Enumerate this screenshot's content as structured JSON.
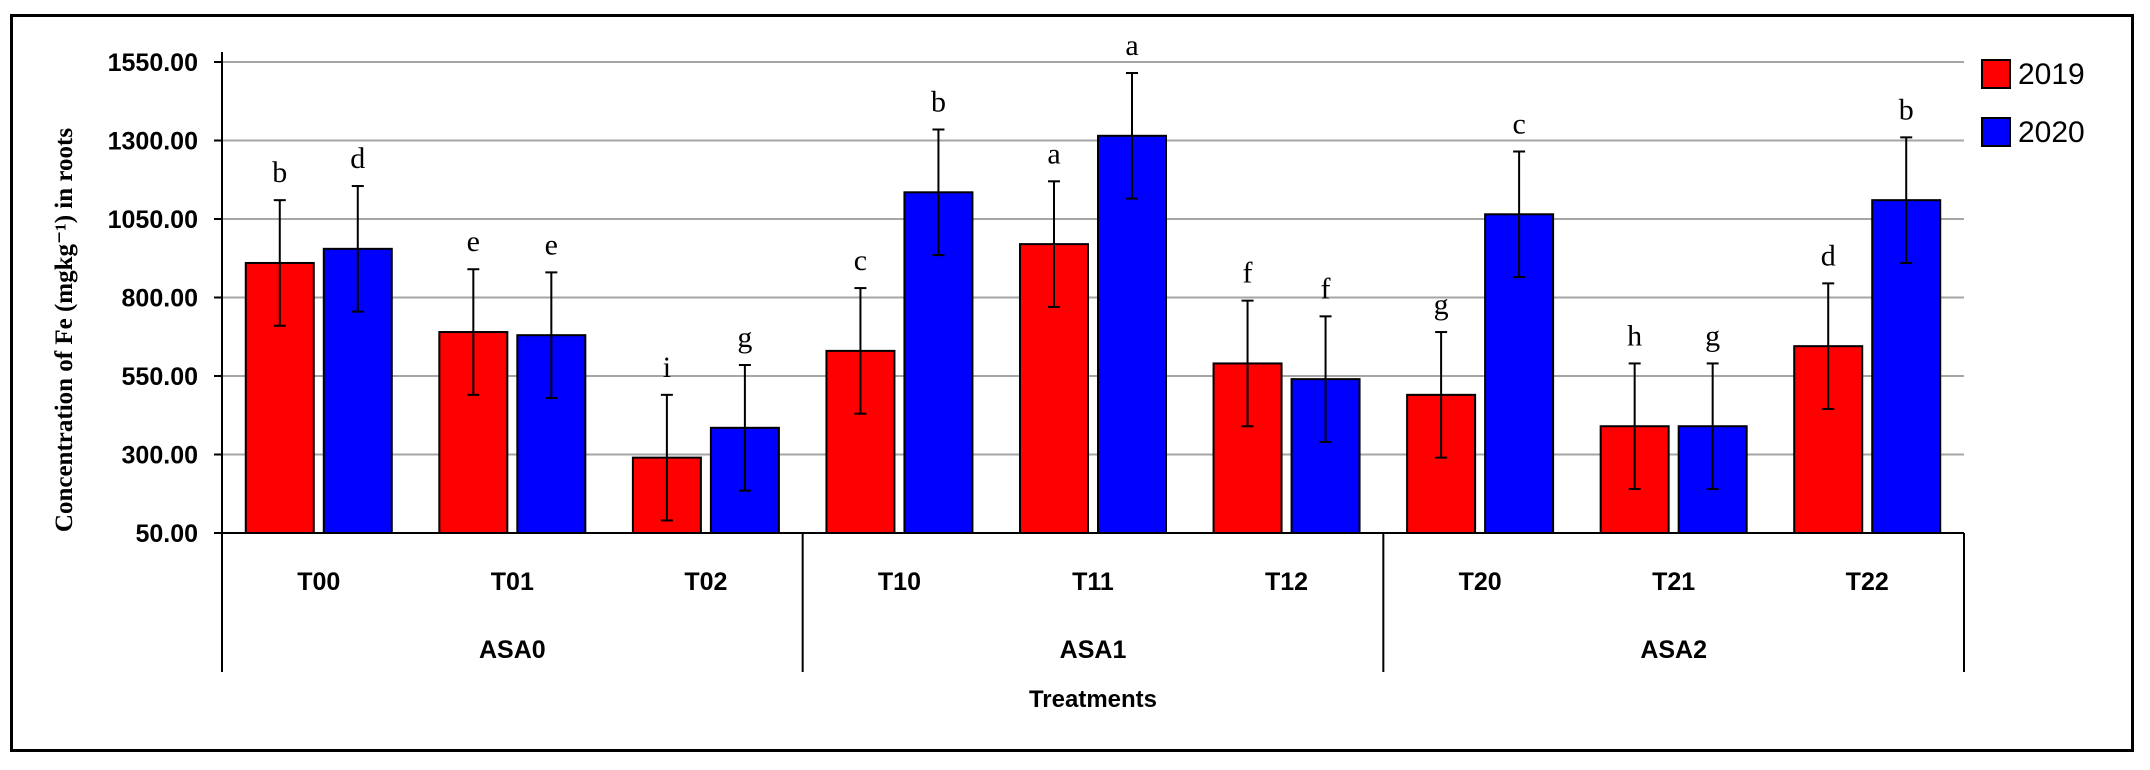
{
  "chart_data": {
    "type": "bar",
    "ylabel": "Concentration of Fe (mgkg⁻¹) in roots",
    "xlabel": "Treatments",
    "ylim": [
      50,
      1550
    ],
    "yticks": [
      "50.00",
      "300.00",
      "550.00",
      "800.00",
      "1050.00",
      "1300.00",
      "1550.00"
    ],
    "ytick_values": [
      50,
      300,
      550,
      800,
      1050,
      1300,
      1550
    ],
    "categories": [
      "T00",
      "T01",
      "T02",
      "T10",
      "T11",
      "T12",
      "T20",
      "T21",
      "T22"
    ],
    "groups": [
      {
        "label": "ASA0",
        "categories": [
          "T00",
          "T01",
          "T02"
        ]
      },
      {
        "label": "ASA1",
        "categories": [
          "T10",
          "T11",
          "T12"
        ]
      },
      {
        "label": "ASA2",
        "categories": [
          "T20",
          "T21",
          "T22"
        ]
      }
    ],
    "series": [
      {
        "name": "2019",
        "color": "#ff0000",
        "values": [
          910,
          690,
          290,
          630,
          970,
          590,
          490,
          390,
          645
        ],
        "errors": [
          200,
          200,
          200,
          200,
          200,
          200,
          200,
          200,
          200
        ],
        "letters": [
          "b",
          "e",
          "i",
          "c",
          "a",
          "f",
          "g",
          "h",
          "d"
        ]
      },
      {
        "name": "2020",
        "color": "#0000ff",
        "values": [
          955,
          680,
          385,
          1135,
          1315,
          540,
          1065,
          390,
          1110
        ],
        "errors": [
          200,
          200,
          200,
          200,
          200,
          200,
          200,
          200,
          200
        ],
        "letters": [
          "d",
          "e",
          "g",
          "b",
          "a",
          "f",
          "c",
          "g",
          "b"
        ]
      }
    ],
    "legend_position": "top-right",
    "grid": true
  }
}
